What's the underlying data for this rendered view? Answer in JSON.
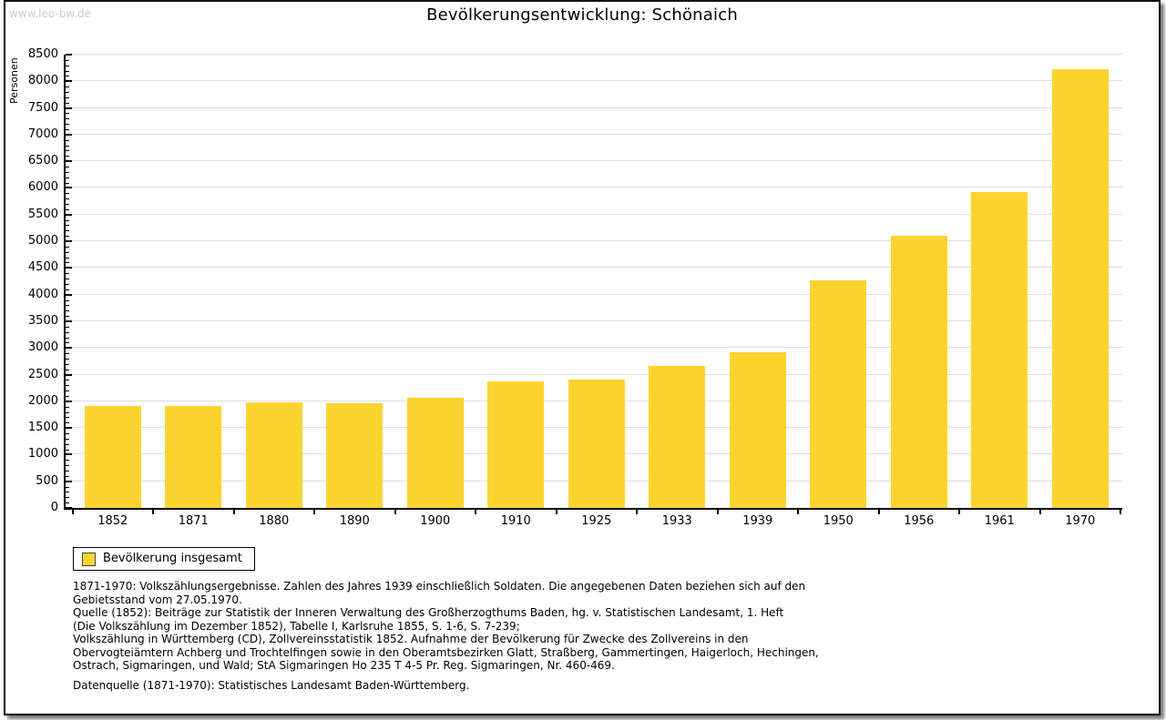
{
  "page": {
    "watermark": "www.leo-bw.de",
    "title": "Bevölkerungsentwicklung: Schönaich"
  },
  "chart_data": {
    "type": "bar",
    "title": "Bevölkerungsentwicklung: Schönaich",
    "ylabel": "Personen",
    "xlabel": "",
    "ylim": [
      0,
      8500
    ],
    "ytick_step": 500,
    "yminor_step": 100,
    "grid": true,
    "bar_color": "#FCD42F",
    "categories": [
      "1852",
      "1871",
      "1880",
      "1890",
      "1900",
      "1910",
      "1925",
      "1933",
      "1939",
      "1950",
      "1956",
      "1961",
      "1970"
    ],
    "values": [
      1920,
      1905,
      1980,
      1955,
      2060,
      2370,
      2400,
      2660,
      2925,
      4260,
      5100,
      5925,
      8230
    ],
    "legend_position": "bottom-left"
  },
  "legend": {
    "label": "Bevölkerung insgesamt",
    "swatch_color": "#FCD42F"
  },
  "footnotes": {
    "lines": [
      "1871-1970: Volkszählungsergebnisse. Zahlen des Jahres 1939 einschließlich Soldaten. Die angegebenen Daten beziehen sich auf den",
      "Gebietsstand vom 27.05.1970.",
      "Quelle (1852): Beiträge zur Statistik der Inneren Verwaltung des Großherzogthums Baden, hg. v. Statistischen Landesamt, 1. Heft",
      "(Die Volkszählung im Dezember 1852), Tabelle I, Karlsruhe 1855, S. 1-6, S. 7-239;",
      "Volkszählung in Württemberg (CD), Zollvereinsstatistik 1852. Aufnahme der Bevölkerung für Zwecke des Zollvereins in den",
      "Obervogteiämtern Achberg und Trochtelfingen sowie in den Oberamtsbezirken Glatt, Straßberg, Gammertingen, Haigerloch, Hechingen,",
      "Ostrach, Sigmaringen, und Wald; StA Sigmaringen Ho 235 T 4-5 Pr. Reg. Sigmaringen, Nr. 460-469."
    ],
    "datasource": "Datenquelle (1871-1970): Statistisches Landesamt Baden-Württemberg."
  }
}
